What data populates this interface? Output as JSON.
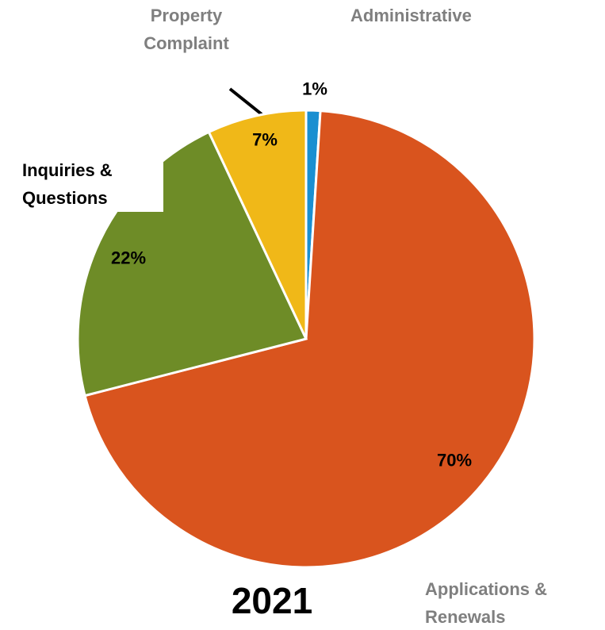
{
  "chart_data": {
    "type": "pie",
    "title": "2021",
    "categories": [
      "Administrative",
      "Applications & Renewals",
      "Inquiries & Questions",
      "Property Complaint"
    ],
    "values": [
      1,
      70,
      22,
      7
    ],
    "value_labels": [
      "1%",
      "70%",
      "22%",
      "7%"
    ],
    "colors": [
      "#1a8fd1",
      "#d9541e",
      "#6e8c27",
      "#f0b818"
    ]
  }
}
